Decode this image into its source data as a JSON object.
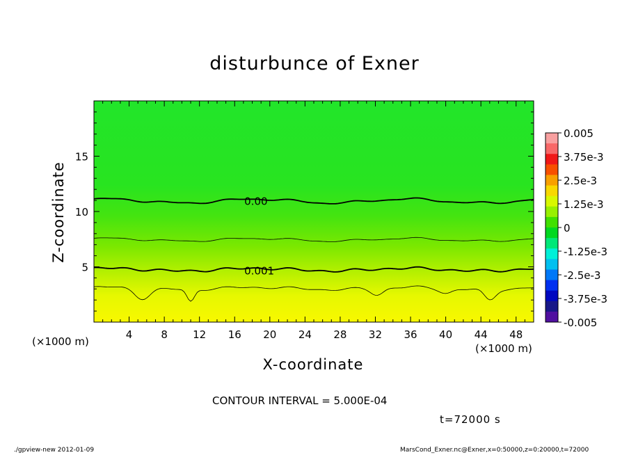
{
  "chart_data": {
    "type": "heatmap",
    "title": "disturbunce of Exner",
    "xlabel": "X-coordinate",
    "ylabel": "Z-coordinate",
    "x_unit": "(×1000 m)",
    "xlim": [
      0,
      50
    ],
    "ylim": [
      0,
      20
    ],
    "x_ticks": [
      "4",
      "8",
      "12",
      "16",
      "20",
      "24",
      "28",
      "32",
      "36",
      "40",
      "44",
      "48"
    ],
    "y_ticks": [
      "5",
      "10",
      "15"
    ],
    "colorbar": {
      "min": -0.005,
      "max": 0.005,
      "labels": [
        "0.005",
        "3.75e-3",
        "2.5e-3",
        "1.25e-3",
        "0",
        "-1.25e-3",
        "-2.5e-3",
        "-3.75e-3",
        "-0.005"
      ]
    },
    "contour_labels": [
      {
        "text": "0.00",
        "x": 17.1,
        "z": 10.6
      },
      {
        "text": "0.001",
        "x": 17.1,
        "z": 4.3
      }
    ],
    "contour_interval": "CONTOUR INTERVAL = 5.000E-04",
    "time": "t=72000 s"
  },
  "footer": {
    "left": "./gpview-new   2012-01-09",
    "right": "MarsCond_Exner.nc@Exner,x=0:50000,z=0:20000,t=72000"
  },
  "colors": {
    "background_fill": "#22e522",
    "accent_green": "#00e000",
    "yellow": "#ffff00"
  }
}
